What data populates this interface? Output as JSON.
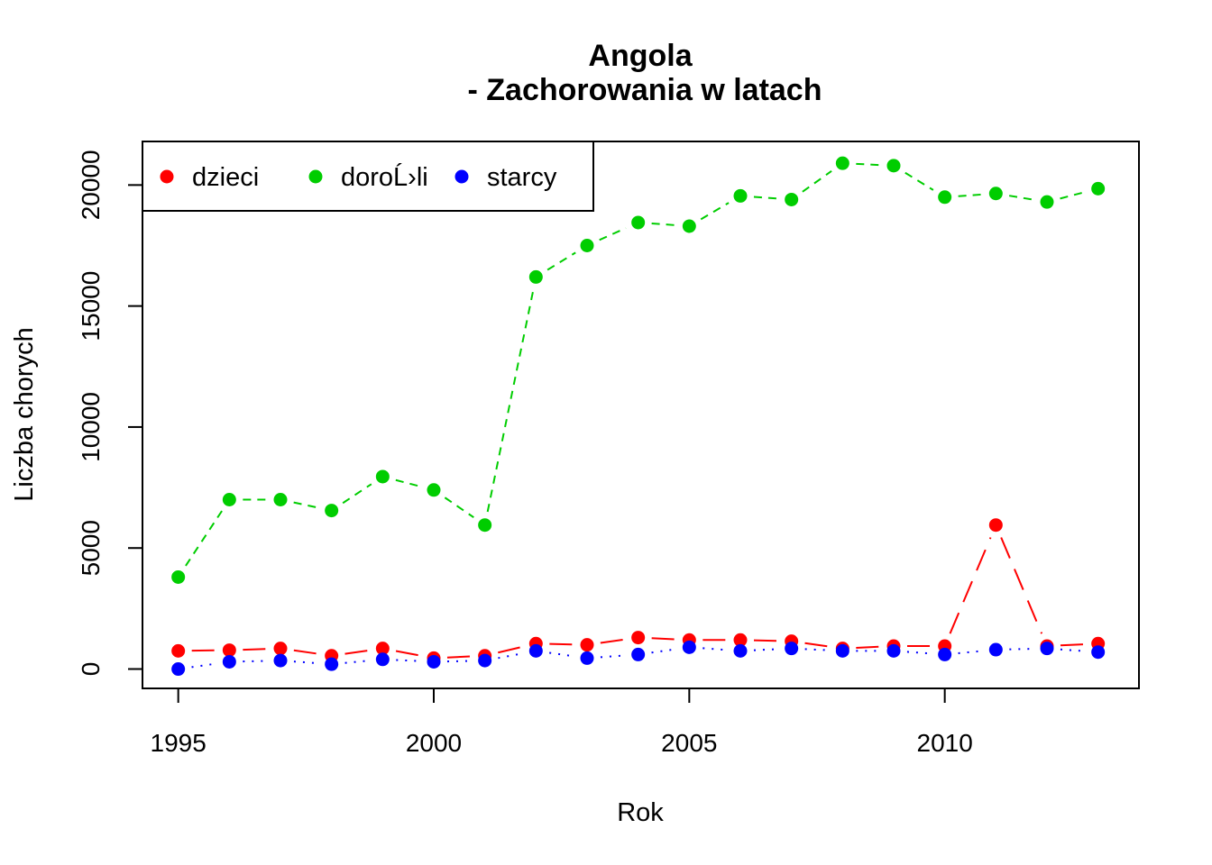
{
  "chart_data": {
    "type": "line",
    "title": "Angola",
    "subtitle": "- Zachorowania w latach",
    "xlabel": "Rok",
    "ylabel": "Liczba chorych",
    "xlim": [
      1994.3,
      2013.8
    ],
    "ylim": [
      -800,
      21800
    ],
    "x_ticks": [
      1995,
      2000,
      2005,
      2010
    ],
    "y_ticks": [
      0,
      5000,
      10000,
      15000,
      20000
    ],
    "legend_position": "top-left",
    "grid": false,
    "x": [
      1995,
      1996,
      1997,
      1998,
      1999,
      2000,
      2001,
      2002,
      2003,
      2004,
      2005,
      2006,
      2007,
      2008,
      2009,
      2010,
      2011,
      2012,
      2013
    ],
    "series": [
      {
        "name": "dzieci",
        "color": "#ff0000",
        "line_style": "longdash",
        "values": [
          750,
          780,
          850,
          550,
          850,
          450,
          550,
          1050,
          1000,
          1300,
          1200,
          1200,
          1150,
          850,
          950,
          950,
          5950,
          950,
          1050
        ]
      },
      {
        "name": "doroĹ›li",
        "color": "#00cd00",
        "line_style": "dashed",
        "values": [
          3800,
          7000,
          7000,
          6550,
          7950,
          7400,
          5950,
          16200,
          17500,
          18450,
          18300,
          19550,
          19400,
          20900,
          20800,
          19500,
          19650,
          19300,
          19850
        ]
      },
      {
        "name": "starcy",
        "color": "#0000ff",
        "line_style": "dotted",
        "values": [
          0,
          300,
          350,
          200,
          400,
          300,
          350,
          750,
          450,
          600,
          900,
          750,
          850,
          750,
          750,
          600,
          800,
          850,
          700
        ]
      }
    ]
  }
}
